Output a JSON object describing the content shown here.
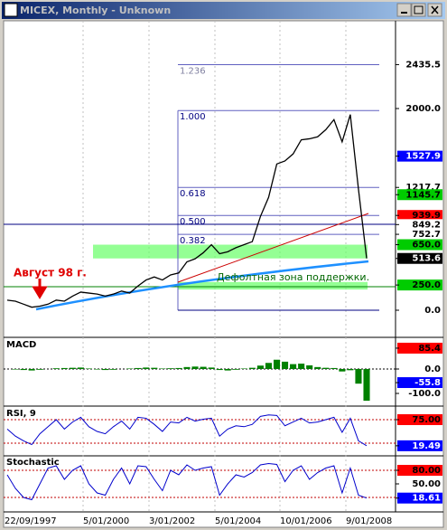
{
  "window": {
    "title": "MICEX, Monthly - Unknown"
  },
  "price_panel": {
    "series": [
      100,
      90,
      60,
      30,
      40,
      60,
      100,
      90,
      140,
      180,
      170,
      160,
      140,
      160,
      190,
      170,
      240,
      300,
      330,
      300,
      350,
      370,
      480,
      510,
      570,
      650,
      560,
      580,
      620,
      650,
      680,
      930,
      1120,
      1450,
      1480,
      1550,
      1690,
      1700,
      1720,
      1790,
      1890,
      1670,
      1940,
      1200,
      514
    ],
    "axis_labels": [
      {
        "text": "2435.5",
        "bg": "#ffffff",
        "fg": "#000000"
      },
      {
        "text": "2000.0",
        "bg": "#ffffff",
        "fg": "#000000"
      },
      {
        "text": "1527.9",
        "bg": "#0000ff",
        "fg": "#ffffff"
      },
      {
        "text": "1217.7",
        "bg": "#ffffff",
        "fg": "#000000"
      },
      {
        "text": "1145.7",
        "bg": "#00cc00",
        "fg": "#000000"
      },
      {
        "text": "939.9",
        "bg": "#ff0000",
        "fg": "#000000"
      },
      {
        "text": "849.2",
        "bg": "#ffffff",
        "fg": "#000000"
      },
      {
        "text": "752.7",
        "bg": "#ffffff",
        "fg": "#000000"
      },
      {
        "text": "650.0",
        "bg": "#00cc00",
        "fg": "#000000"
      },
      {
        "text": "513.6",
        "bg": "#000000",
        "fg": "#ffffff"
      },
      {
        "text": "250.0",
        "bg": "#00cc00",
        "fg": "#000000"
      },
      {
        "text": "0.0",
        "bg": "#ffffff",
        "fg": "#000000"
      }
    ],
    "fib_levels": [
      {
        "label": "1.236",
        "price": 2435.5
      },
      {
        "label": "1.000",
        "price": 1980
      },
      {
        "label": "0.618",
        "price": 1217.7
      },
      {
        "label": "0.500",
        "price": 939.9
      },
      {
        "label": "0.382",
        "price": 752.7
      }
    ],
    "zones": [
      [
        513.6,
        650
      ],
      [
        205,
        280
      ]
    ],
    "annotations": {
      "august": "Август 98 г.",
      "support": "Дефолтная зона поддержки."
    }
  },
  "macd_panel": {
    "title": "MACD",
    "histogram": [
      0,
      -2,
      -4,
      -6,
      -3,
      0,
      3,
      4,
      5,
      6,
      2,
      -2,
      -4,
      -3,
      0,
      2,
      4,
      6,
      5,
      2,
      3,
      4,
      8,
      10,
      9,
      6,
      -4,
      -6,
      -3,
      2,
      5,
      14,
      25,
      38,
      30,
      20,
      22,
      15,
      8,
      5,
      4,
      -10,
      -5,
      -60,
      -130
    ],
    "axis_labels": [
      {
        "text": "85.4",
        "bg": "#ff0000",
        "fg": "#000000"
      },
      {
        "text": "0.0",
        "bg": "#ffffff",
        "fg": "#000000"
      },
      {
        "text": "-55.8",
        "bg": "#0000ff",
        "fg": "#ffffff"
      },
      {
        "text": "-100.0",
        "bg": "#ffffff",
        "fg": "#000000"
      }
    ]
  },
  "rsi_panel": {
    "title": "RSI, 9",
    "series": [
      55,
      40,
      30,
      22,
      45,
      60,
      75,
      55,
      70,
      80,
      60,
      50,
      45,
      60,
      72,
      55,
      80,
      78,
      65,
      50,
      70,
      68,
      80,
      72,
      76,
      78,
      40,
      55,
      62,
      60,
      65,
      82,
      85,
      84,
      62,
      70,
      78,
      68,
      70,
      75,
      80,
      48,
      78,
      30,
      19.49
    ],
    "axis_labels": [
      {
        "text": "75.00",
        "bg": "#ff0000",
        "fg": "#000000"
      },
      {
        "text": "19.49",
        "bg": "#0000ff",
        "fg": "#ffffff"
      }
    ]
  },
  "stoch_panel": {
    "title": "Stochastic",
    "series": [
      70,
      40,
      20,
      15,
      50,
      85,
      90,
      60,
      80,
      90,
      50,
      30,
      25,
      60,
      85,
      50,
      90,
      88,
      60,
      35,
      80,
      70,
      92,
      80,
      85,
      88,
      25,
      50,
      70,
      65,
      75,
      92,
      95,
      93,
      55,
      80,
      90,
      60,
      75,
      85,
      90,
      30,
      85,
      25,
      18.61
    ],
    "axis_labels": [
      {
        "text": "80.00",
        "bg": "#ff0000",
        "fg": "#000000"
      },
      {
        "text": "50.00",
        "bg": "#ffffff",
        "fg": "#000000"
      },
      {
        "text": "18.61",
        "bg": "#0000ff",
        "fg": "#ffffff"
      }
    ]
  },
  "x_axis": {
    "labels": [
      "22/09/1997",
      "5/01/2000",
      "3/01/2002",
      "5/01/2004",
      "10/01/2006",
      "9/01/2008"
    ]
  }
}
